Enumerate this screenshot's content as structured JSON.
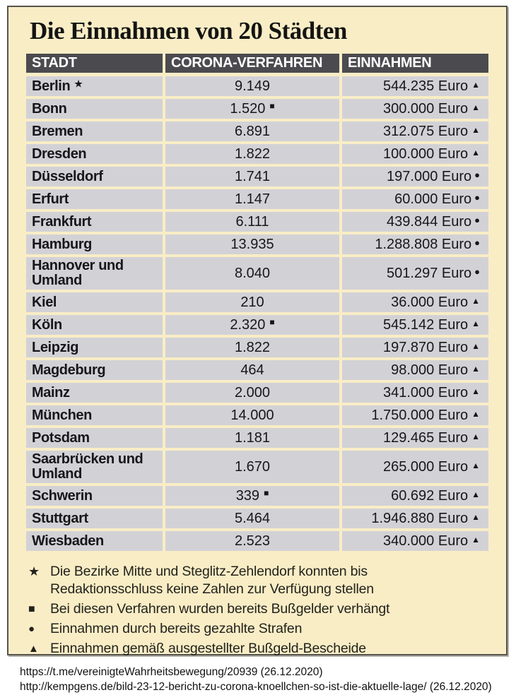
{
  "title": "Die Einnahmen von 20 Städten",
  "colors": {
    "box_background": "#f9edc6",
    "row_background": "#d2d2d6",
    "header_background": "#4b4b4f",
    "header_text": "#ffffff",
    "border": "#55534b",
    "text": "#17171a"
  },
  "chart_data": {
    "type": "table",
    "title": "Die Einnahmen von 20 Städten",
    "columns": [
      "STADT",
      "CORONA-VERFAHREN",
      "EINNAHMEN"
    ],
    "rows": [
      {
        "stadt": "Berlin",
        "stadt_marker": "★",
        "verfahren": "9.149",
        "verfahren_marker": "",
        "einnahmen": "544.235 Euro",
        "einnahmen_marker": "▲"
      },
      {
        "stadt": "Bonn",
        "stadt_marker": "",
        "verfahren": "1.520",
        "verfahren_marker": "■",
        "einnahmen": "300.000 Euro",
        "einnahmen_marker": "▲"
      },
      {
        "stadt": "Bremen",
        "stadt_marker": "",
        "verfahren": "6.891",
        "verfahren_marker": "",
        "einnahmen": "312.075 Euro",
        "einnahmen_marker": "▲"
      },
      {
        "stadt": "Dresden",
        "stadt_marker": "",
        "verfahren": "1.822",
        "verfahren_marker": "",
        "einnahmen": "100.000 Euro",
        "einnahmen_marker": "▲"
      },
      {
        "stadt": "Düsseldorf",
        "stadt_marker": "",
        "verfahren": "1.741",
        "verfahren_marker": "",
        "einnahmen": "197.000 Euro",
        "einnahmen_marker": "●"
      },
      {
        "stadt": "Erfurt",
        "stadt_marker": "",
        "verfahren": "1.147",
        "verfahren_marker": "",
        "einnahmen": "60.000 Euro",
        "einnahmen_marker": "●"
      },
      {
        "stadt": "Frankfurt",
        "stadt_marker": "",
        "verfahren": "6.111",
        "verfahren_marker": "",
        "einnahmen": "439.844 Euro",
        "einnahmen_marker": "●"
      },
      {
        "stadt": "Hamburg",
        "stadt_marker": "",
        "verfahren": "13.935",
        "verfahren_marker": "",
        "einnahmen": "1.288.808 Euro",
        "einnahmen_marker": "●"
      },
      {
        "stadt": "Hannover und Umland",
        "stadt_marker": "",
        "verfahren": "8.040",
        "verfahren_marker": "",
        "einnahmen": "501.297 Euro",
        "einnahmen_marker": "●"
      },
      {
        "stadt": "Kiel",
        "stadt_marker": "",
        "verfahren": "210",
        "verfahren_marker": "",
        "einnahmen": "36.000 Euro",
        "einnahmen_marker": "▲"
      },
      {
        "stadt": "Köln",
        "stadt_marker": "",
        "verfahren": "2.320",
        "verfahren_marker": "■",
        "einnahmen": "545.142 Euro",
        "einnahmen_marker": "▲"
      },
      {
        "stadt": "Leipzig",
        "stadt_marker": "",
        "verfahren": "1.822",
        "verfahren_marker": "",
        "einnahmen": "197.870 Euro",
        "einnahmen_marker": "▲"
      },
      {
        "stadt": "Magdeburg",
        "stadt_marker": "",
        "verfahren": "464",
        "verfahren_marker": "",
        "einnahmen": "98.000 Euro",
        "einnahmen_marker": "▲"
      },
      {
        "stadt": "Mainz",
        "stadt_marker": "",
        "verfahren": "2.000",
        "verfahren_marker": "",
        "einnahmen": "341.000 Euro",
        "einnahmen_marker": "▲"
      },
      {
        "stadt": "München",
        "stadt_marker": "",
        "verfahren": "14.000",
        "verfahren_marker": "",
        "einnahmen": "1.750.000 Euro",
        "einnahmen_marker": "▲"
      },
      {
        "stadt": "Potsdam",
        "stadt_marker": "",
        "verfahren": "1.181",
        "verfahren_marker": "",
        "einnahmen": "129.465 Euro",
        "einnahmen_marker": "▲"
      },
      {
        "stadt": "Saarbrücken und Umland",
        "stadt_marker": "",
        "verfahren": "1.670",
        "verfahren_marker": "",
        "einnahmen": "265.000 Euro",
        "einnahmen_marker": "▲"
      },
      {
        "stadt": "Schwerin",
        "stadt_marker": "",
        "verfahren": "339",
        "verfahren_marker": "■",
        "einnahmen": "60.692 Euro",
        "einnahmen_marker": "▲"
      },
      {
        "stadt": "Stuttgart",
        "stadt_marker": "",
        "verfahren": "5.464",
        "verfahren_marker": "",
        "einnahmen": "1.946.880 Euro",
        "einnahmen_marker": "▲"
      },
      {
        "stadt": "Wiesbaden",
        "stadt_marker": "",
        "verfahren": "2.523",
        "verfahren_marker": "",
        "einnahmen": "340.000 Euro",
        "einnahmen_marker": "▲"
      }
    ]
  },
  "footnotes": [
    {
      "symbol": "★",
      "icon": "star-icon",
      "text": "Die Bezirke Mitte und Steglitz-Zehlendorf konnten bis Redaktionsschluss keine Zahlen zur Verfügung stellen"
    },
    {
      "symbol": "■",
      "icon": "square-icon",
      "text": "Bei diesen Verfahren wurden bereits Bußgelder verhängt"
    },
    {
      "symbol": "●",
      "icon": "circle-icon",
      "text": "Einnahmen durch bereits gezahlte Strafen"
    },
    {
      "symbol": "▲",
      "icon": "triangle-icon",
      "text": "Einnahmen gemäß ausgestellter Bußgeld-Bescheide"
    }
  ],
  "sources": [
    "https://t.me/vereinigteWahrheitsbewegung/20939 (26.12.2020)",
    "http://kempgens.de/bild-23-12-bericht-zu-corona-knoellchen-so-ist-die-aktuelle-lage/ (26.12.2020)"
  ]
}
